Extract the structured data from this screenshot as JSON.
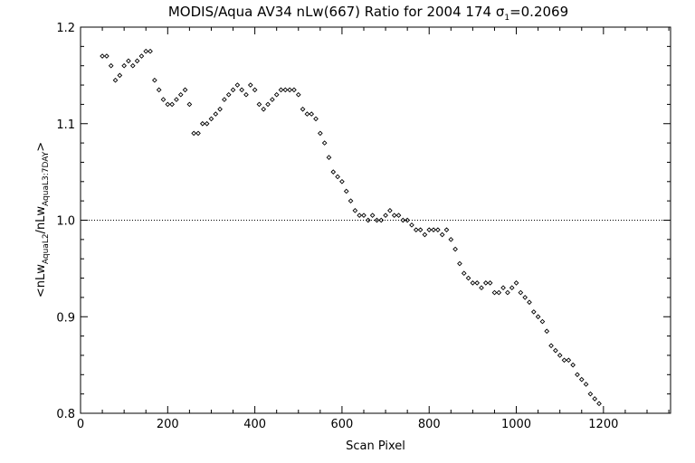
{
  "chart_data": {
    "type": "scatter",
    "title": {
      "prefix": "MODIS/Aqua AV34 nLw(667) Ratio for 2004 174 ",
      "sigma_symbol": "σ",
      "sigma_subscript": "1",
      "suffix": "=0.2069"
    },
    "xlabel": "Scan Pixel",
    "ylabel": {
      "open": "<nLw",
      "num_sub": "AquaL2",
      "mid": "/nLw",
      "den_sub": "AquaL3:7DAY",
      "close": ">"
    },
    "xlim": [
      0,
      1354
    ],
    "ylim": [
      0.8,
      1.2
    ],
    "x_ticks": [
      0,
      200,
      400,
      600,
      800,
      1000,
      1200
    ],
    "x_tick_labels": [
      "0",
      "200",
      "400",
      "600",
      "800",
      "1000",
      "1200"
    ],
    "y_ticks": [
      0.8,
      0.9,
      1.0,
      1.1,
      1.2
    ],
    "y_tick_labels": [
      "0.8",
      "0.9",
      "1.0",
      "1.1",
      "1.2"
    ],
    "reference_line": {
      "y": 1.0,
      "style": "dotted"
    },
    "marker": "diamond",
    "series": [
      {
        "x": [
          50,
          60,
          70,
          80,
          90,
          100,
          110,
          120,
          130,
          140,
          150,
          160,
          170,
          180,
          190,
          200,
          210,
          220,
          230,
          240,
          250,
          260,
          270,
          280,
          290,
          300,
          310,
          320,
          330,
          340,
          350,
          360,
          370,
          380,
          390,
          400,
          410,
          420,
          430,
          440,
          450,
          460,
          470,
          480,
          490,
          500,
          510,
          520,
          530,
          540,
          550,
          560,
          570,
          580,
          590,
          600,
          610,
          620,
          630,
          640,
          650,
          660,
          670,
          680,
          690,
          700,
          710,
          720,
          730,
          740,
          750,
          760,
          770,
          780,
          790,
          800,
          810,
          820,
          830,
          840,
          850,
          860,
          870,
          880,
          890,
          900,
          910,
          920,
          930,
          940,
          950,
          960,
          970,
          980,
          990,
          1000,
          1010,
          1020,
          1030,
          1040,
          1050,
          1060,
          1070,
          1080,
          1090,
          1100,
          1110,
          1120,
          1130,
          1140,
          1150,
          1160,
          1170,
          1180,
          1190
        ],
        "y": [
          1.17,
          1.17,
          1.16,
          1.145,
          1.15,
          1.16,
          1.165,
          1.16,
          1.165,
          1.17,
          1.175,
          1.175,
          1.145,
          1.135,
          1.125,
          1.12,
          1.12,
          1.125,
          1.13,
          1.135,
          1.12,
          1.09,
          1.09,
          1.1,
          1.1,
          1.105,
          1.11,
          1.115,
          1.125,
          1.13,
          1.135,
          1.14,
          1.135,
          1.13,
          1.14,
          1.135,
          1.12,
          1.115,
          1.12,
          1.125,
          1.13,
          1.135,
          1.135,
          1.135,
          1.135,
          1.13,
          1.115,
          1.11,
          1.11,
          1.105,
          1.09,
          1.08,
          1.065,
          1.05,
          1.045,
          1.04,
          1.03,
          1.02,
          1.01,
          1.005,
          1.005,
          1.0,
          1.005,
          1.0,
          1.0,
          1.005,
          1.01,
          1.005,
          1.005,
          1.0,
          1.0,
          0.995,
          0.99,
          0.99,
          0.985,
          0.99,
          0.99,
          0.99,
          0.985,
          0.99,
          0.98,
          0.97,
          0.955,
          0.945,
          0.94,
          0.935,
          0.935,
          0.93,
          0.935,
          0.935,
          0.925,
          0.925,
          0.93,
          0.925,
          0.93,
          0.935,
          0.925,
          0.92,
          0.915,
          0.905,
          0.9,
          0.895,
          0.885,
          0.87,
          0.865,
          0.86,
          0.855,
          0.855,
          0.85,
          0.84,
          0.835,
          0.83,
          0.82,
          0.815,
          0.81
        ]
      }
    ],
    "grid": false,
    "legend": "none"
  }
}
